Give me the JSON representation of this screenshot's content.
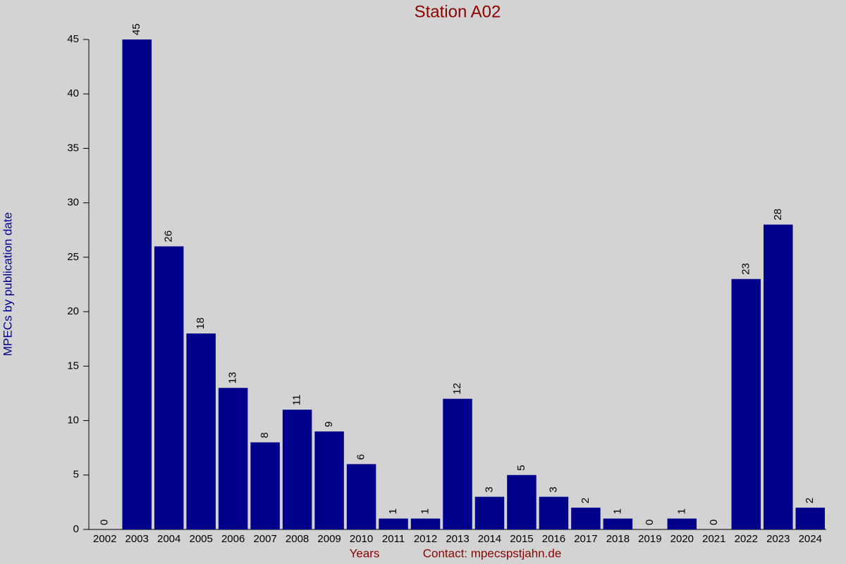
{
  "chart_data": {
    "type": "bar",
    "title": "Station A02",
    "x_label": "Years",
    "contact": "Contact: mpecspstjahn.de",
    "y_label": "MPECs by publication date",
    "categories": [
      "2002",
      "2003",
      "2004",
      "2005",
      "2006",
      "2007",
      "2008",
      "2009",
      "2010",
      "2011",
      "2012",
      "2013",
      "2014",
      "2015",
      "2016",
      "2017",
      "2018",
      "2019",
      "2020",
      "2021",
      "2022",
      "2023",
      "2024"
    ],
    "values": [
      0,
      45,
      26,
      18,
      13,
      8,
      11,
      9,
      6,
      1,
      1,
      12,
      3,
      5,
      3,
      2,
      1,
      0,
      1,
      0,
      23,
      28,
      2
    ],
    "color": "#00008b",
    "ylim": [
      0,
      45
    ],
    "yticks": [
      0,
      5,
      10,
      15,
      20,
      25,
      30,
      35,
      40,
      45
    ]
  }
}
